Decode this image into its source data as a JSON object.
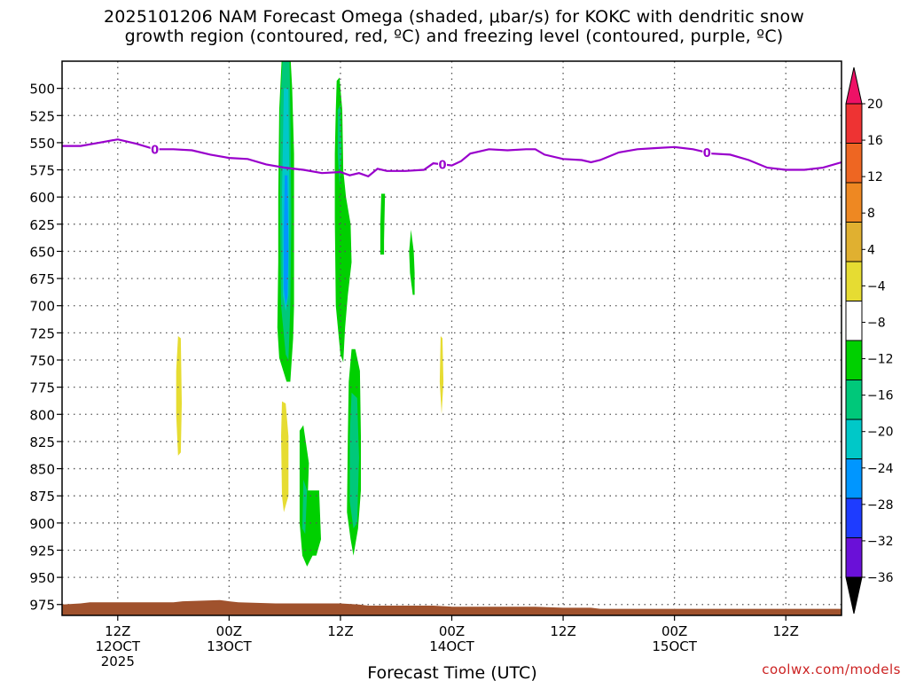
{
  "title_line1": "2025101206 NAM Forecast Omega (shaded, μbar/s) for KOKC with dendritic snow",
  "title_line2": "growth region (contoured, red, ºC) and freezing level (contoured, purple, ºC)",
  "xlabel": "Forecast Time (UTC)",
  "watermark": "coolwx.com/models",
  "colors": {
    "freezing_line": "#9900cc",
    "terrain": "#a0522d",
    "grid": "#555555"
  },
  "chart_data": {
    "type": "heatmap",
    "title": "2025101206 NAM Forecast Omega (shaded, μbar/s) for KOKC with dendritic snow growth region (contoured, red, ºC) and freezing level (contoured, purple, ºC)",
    "xlabel": "Forecast Time (UTC)",
    "ylabel": "",
    "y_scale": "pressure (hPa), inverted",
    "ylim": [
      985,
      475
    ],
    "xlim_hours_from_run": [
      0,
      84
    ],
    "x_ticks": [
      {
        "hour": 6,
        "lines": [
          "12Z",
          "12OCT",
          "2025"
        ]
      },
      {
        "hour": 18,
        "lines": [
          "00Z",
          "13OCT"
        ]
      },
      {
        "hour": 30,
        "lines": [
          "12Z"
        ]
      },
      {
        "hour": 42,
        "lines": [
          "00Z",
          "14OCT"
        ]
      },
      {
        "hour": 54,
        "lines": [
          "12Z"
        ]
      },
      {
        "hour": 66,
        "lines": [
          "00Z",
          "15OCT"
        ]
      },
      {
        "hour": 78,
        "lines": [
          "12Z"
        ]
      }
    ],
    "y_ticks": [
      500,
      525,
      550,
      575,
      600,
      625,
      650,
      675,
      700,
      725,
      750,
      775,
      800,
      825,
      850,
      875,
      900,
      925,
      950,
      975
    ],
    "colorbar": {
      "labels": [
        "20",
        "16",
        "12",
        "8",
        "4",
        "−4",
        "−8",
        "−12",
        "−16",
        "−20",
        "−24",
        "−28",
        "−32",
        "−36"
      ],
      "colors": [
        "#ee1166",
        "#ee3333",
        "#ee6622",
        "#ee8822",
        "#e0b030",
        "#e6dc32",
        "#ffffff",
        "#00d000",
        "#00c87a",
        "#00c8c8",
        "#0096ff",
        "#1e3cff",
        "#6a10d8",
        "#a000c8",
        "#aaaaaa",
        "#000000"
      ]
    },
    "freezing_level": {
      "label": "0",
      "points": [
        [
          0,
          553
        ],
        [
          2,
          553
        ],
        [
          4,
          550
        ],
        [
          6,
          547
        ],
        [
          8,
          551
        ],
        [
          10,
          556
        ],
        [
          12,
          556
        ],
        [
          14,
          557
        ],
        [
          16,
          561
        ],
        [
          18,
          564
        ],
        [
          20,
          565
        ],
        [
          22,
          570
        ],
        [
          24,
          573
        ],
        [
          26,
          575
        ],
        [
          28,
          578
        ],
        [
          30,
          577
        ],
        [
          31,
          580
        ],
        [
          32,
          578
        ],
        [
          33,
          581
        ],
        [
          34,
          574
        ],
        [
          35,
          576
        ],
        [
          37,
          576
        ],
        [
          39,
          575
        ],
        [
          40,
          569
        ],
        [
          41,
          570
        ],
        [
          42,
          571
        ],
        [
          43,
          567
        ],
        [
          44,
          560
        ],
        [
          46,
          556
        ],
        [
          48,
          557
        ],
        [
          50,
          556
        ],
        [
          51,
          556
        ],
        [
          52,
          561
        ],
        [
          54,
          565
        ],
        [
          56,
          566
        ],
        [
          57,
          568
        ],
        [
          58,
          566
        ],
        [
          60,
          559
        ],
        [
          62,
          556
        ],
        [
          64,
          555
        ],
        [
          66,
          554
        ],
        [
          68,
          556
        ],
        [
          70,
          560
        ],
        [
          72,
          561
        ],
        [
          74,
          566
        ],
        [
          76,
          573
        ],
        [
          78,
          575
        ],
        [
          80,
          575
        ],
        [
          82,
          573
        ],
        [
          84,
          568
        ]
      ],
      "label_hours": [
        10,
        41,
        69.5
      ]
    },
    "omega_regions": [
      {
        "level": -4,
        "points": [
          [
            23.7,
            468
          ],
          [
            24.6,
            468
          ],
          [
            24.8,
            500
          ],
          [
            25.0,
            560
          ],
          [
            25.0,
            650
          ],
          [
            25.0,
            700
          ],
          [
            24.9,
            730
          ],
          [
            24.6,
            770
          ],
          [
            24.2,
            770
          ],
          [
            23.4,
            748
          ],
          [
            23.2,
            720
          ],
          [
            23.3,
            660
          ],
          [
            23.3,
            600
          ],
          [
            23.4,
            520
          ]
        ]
      },
      {
        "level": -8,
        "points": [
          [
            23.8,
            468
          ],
          [
            24.5,
            468
          ],
          [
            24.6,
            520
          ],
          [
            24.7,
            620
          ],
          [
            24.6,
            700
          ],
          [
            24.4,
            750
          ],
          [
            24.1,
            745
          ],
          [
            23.6,
            700
          ],
          [
            23.5,
            620
          ],
          [
            23.5,
            520
          ]
        ]
      },
      {
        "level": -12,
        "points": [
          [
            23.9,
            500
          ],
          [
            24.4,
            500
          ],
          [
            24.5,
            600
          ],
          [
            24.4,
            690
          ],
          [
            24.1,
            705
          ],
          [
            23.8,
            690
          ],
          [
            23.7,
            600
          ]
        ]
      },
      {
        "level": -16,
        "points": [
          [
            24.0,
            580
          ],
          [
            24.3,
            580
          ],
          [
            24.4,
            650
          ],
          [
            24.3,
            692
          ],
          [
            24.1,
            700
          ],
          [
            23.9,
            685
          ],
          [
            23.9,
            630
          ]
        ]
      },
      {
        "level": -4,
        "points": [
          [
            29.6,
            493
          ],
          [
            29.9,
            490
          ],
          [
            30.2,
            520
          ],
          [
            30.3,
            575
          ],
          [
            30.6,
            600
          ],
          [
            31.1,
            625
          ],
          [
            31.2,
            660
          ],
          [
            30.8,
            690
          ],
          [
            30.5,
            720
          ],
          [
            30.3,
            752
          ],
          [
            30.0,
            745
          ],
          [
            29.5,
            700
          ],
          [
            29.4,
            620
          ],
          [
            29.4,
            560
          ],
          [
            29.5,
            520
          ]
        ]
      },
      {
        "level": -8,
        "points": [
          [
            29.7,
            520
          ],
          [
            30.0,
            515
          ],
          [
            30.1,
            560
          ],
          [
            29.9,
            590
          ],
          [
            29.7,
            560
          ]
        ]
      },
      {
        "level": -4,
        "points": [
          [
            34.4,
            597
          ],
          [
            34.8,
            597
          ],
          [
            34.7,
            640
          ],
          [
            34.7,
            653
          ],
          [
            34.3,
            653
          ],
          [
            34.3,
            625
          ]
        ]
      },
      {
        "level": -4,
        "points": [
          [
            37.6,
            630
          ],
          [
            37.9,
            650
          ],
          [
            38.0,
            670
          ],
          [
            38.0,
            690
          ],
          [
            37.8,
            690
          ],
          [
            37.5,
            670
          ],
          [
            37.4,
            650
          ]
        ]
      },
      {
        "level": -4,
        "points": [
          [
            31.2,
            740
          ],
          [
            31.6,
            740
          ],
          [
            32.1,
            760
          ],
          [
            32.2,
            820
          ],
          [
            32.2,
            870
          ],
          [
            31.9,
            905
          ],
          [
            31.4,
            930
          ],
          [
            31.1,
            915
          ],
          [
            30.7,
            890
          ],
          [
            30.8,
            820
          ],
          [
            30.9,
            770
          ]
        ]
      },
      {
        "level": -8,
        "points": [
          [
            31.2,
            780
          ],
          [
            31.8,
            785
          ],
          [
            32.0,
            840
          ],
          [
            31.8,
            900
          ],
          [
            31.4,
            905
          ],
          [
            31.0,
            880
          ],
          [
            31.0,
            820
          ]
        ]
      },
      {
        "level": -4,
        "points": [
          [
            25.6,
            815
          ],
          [
            26.0,
            810
          ],
          [
            26.6,
            845
          ],
          [
            26.5,
            870
          ],
          [
            27.7,
            870
          ],
          [
            27.9,
            915
          ],
          [
            27.4,
            930
          ],
          [
            27.0,
            930
          ],
          [
            26.4,
            940
          ],
          [
            25.9,
            930
          ],
          [
            25.6,
            900
          ],
          [
            25.6,
            860
          ]
        ]
      },
      {
        "level": -8,
        "points": [
          [
            26.0,
            860
          ],
          [
            26.4,
            870
          ],
          [
            26.2,
            910
          ],
          [
            25.9,
            905
          ]
        ]
      },
      {
        "level": 4,
        "points": [
          [
            12.5,
            728
          ],
          [
            12.8,
            730
          ],
          [
            12.9,
            790
          ],
          [
            12.8,
            835
          ],
          [
            12.5,
            838
          ],
          [
            12.3,
            800
          ],
          [
            12.3,
            760
          ]
        ]
      },
      {
        "level": 4,
        "points": [
          [
            23.7,
            788
          ],
          [
            24.1,
            790
          ],
          [
            24.4,
            820
          ],
          [
            24.4,
            875
          ],
          [
            23.9,
            890
          ],
          [
            23.7,
            875
          ],
          [
            23.6,
            820
          ]
        ]
      },
      {
        "level": 4,
        "points": [
          [
            40.8,
            728
          ],
          [
            41.0,
            730
          ],
          [
            41.1,
            770
          ],
          [
            40.9,
            800
          ],
          [
            40.7,
            770
          ]
        ]
      }
    ],
    "surface_pressure": [
      [
        0,
        975
      ],
      [
        2,
        974
      ],
      [
        3,
        973
      ],
      [
        8,
        973
      ],
      [
        12,
        973
      ],
      [
        13,
        972
      ],
      [
        17,
        971
      ],
      [
        18,
        972
      ],
      [
        19,
        973
      ],
      [
        23,
        974
      ],
      [
        30,
        974
      ],
      [
        32,
        975
      ],
      [
        33,
        976
      ],
      [
        40,
        976
      ],
      [
        42,
        977
      ],
      [
        51,
        977
      ],
      [
        54,
        978
      ],
      [
        57,
        978
      ],
      [
        58,
        979
      ],
      [
        84,
        979
      ]
    ]
  }
}
